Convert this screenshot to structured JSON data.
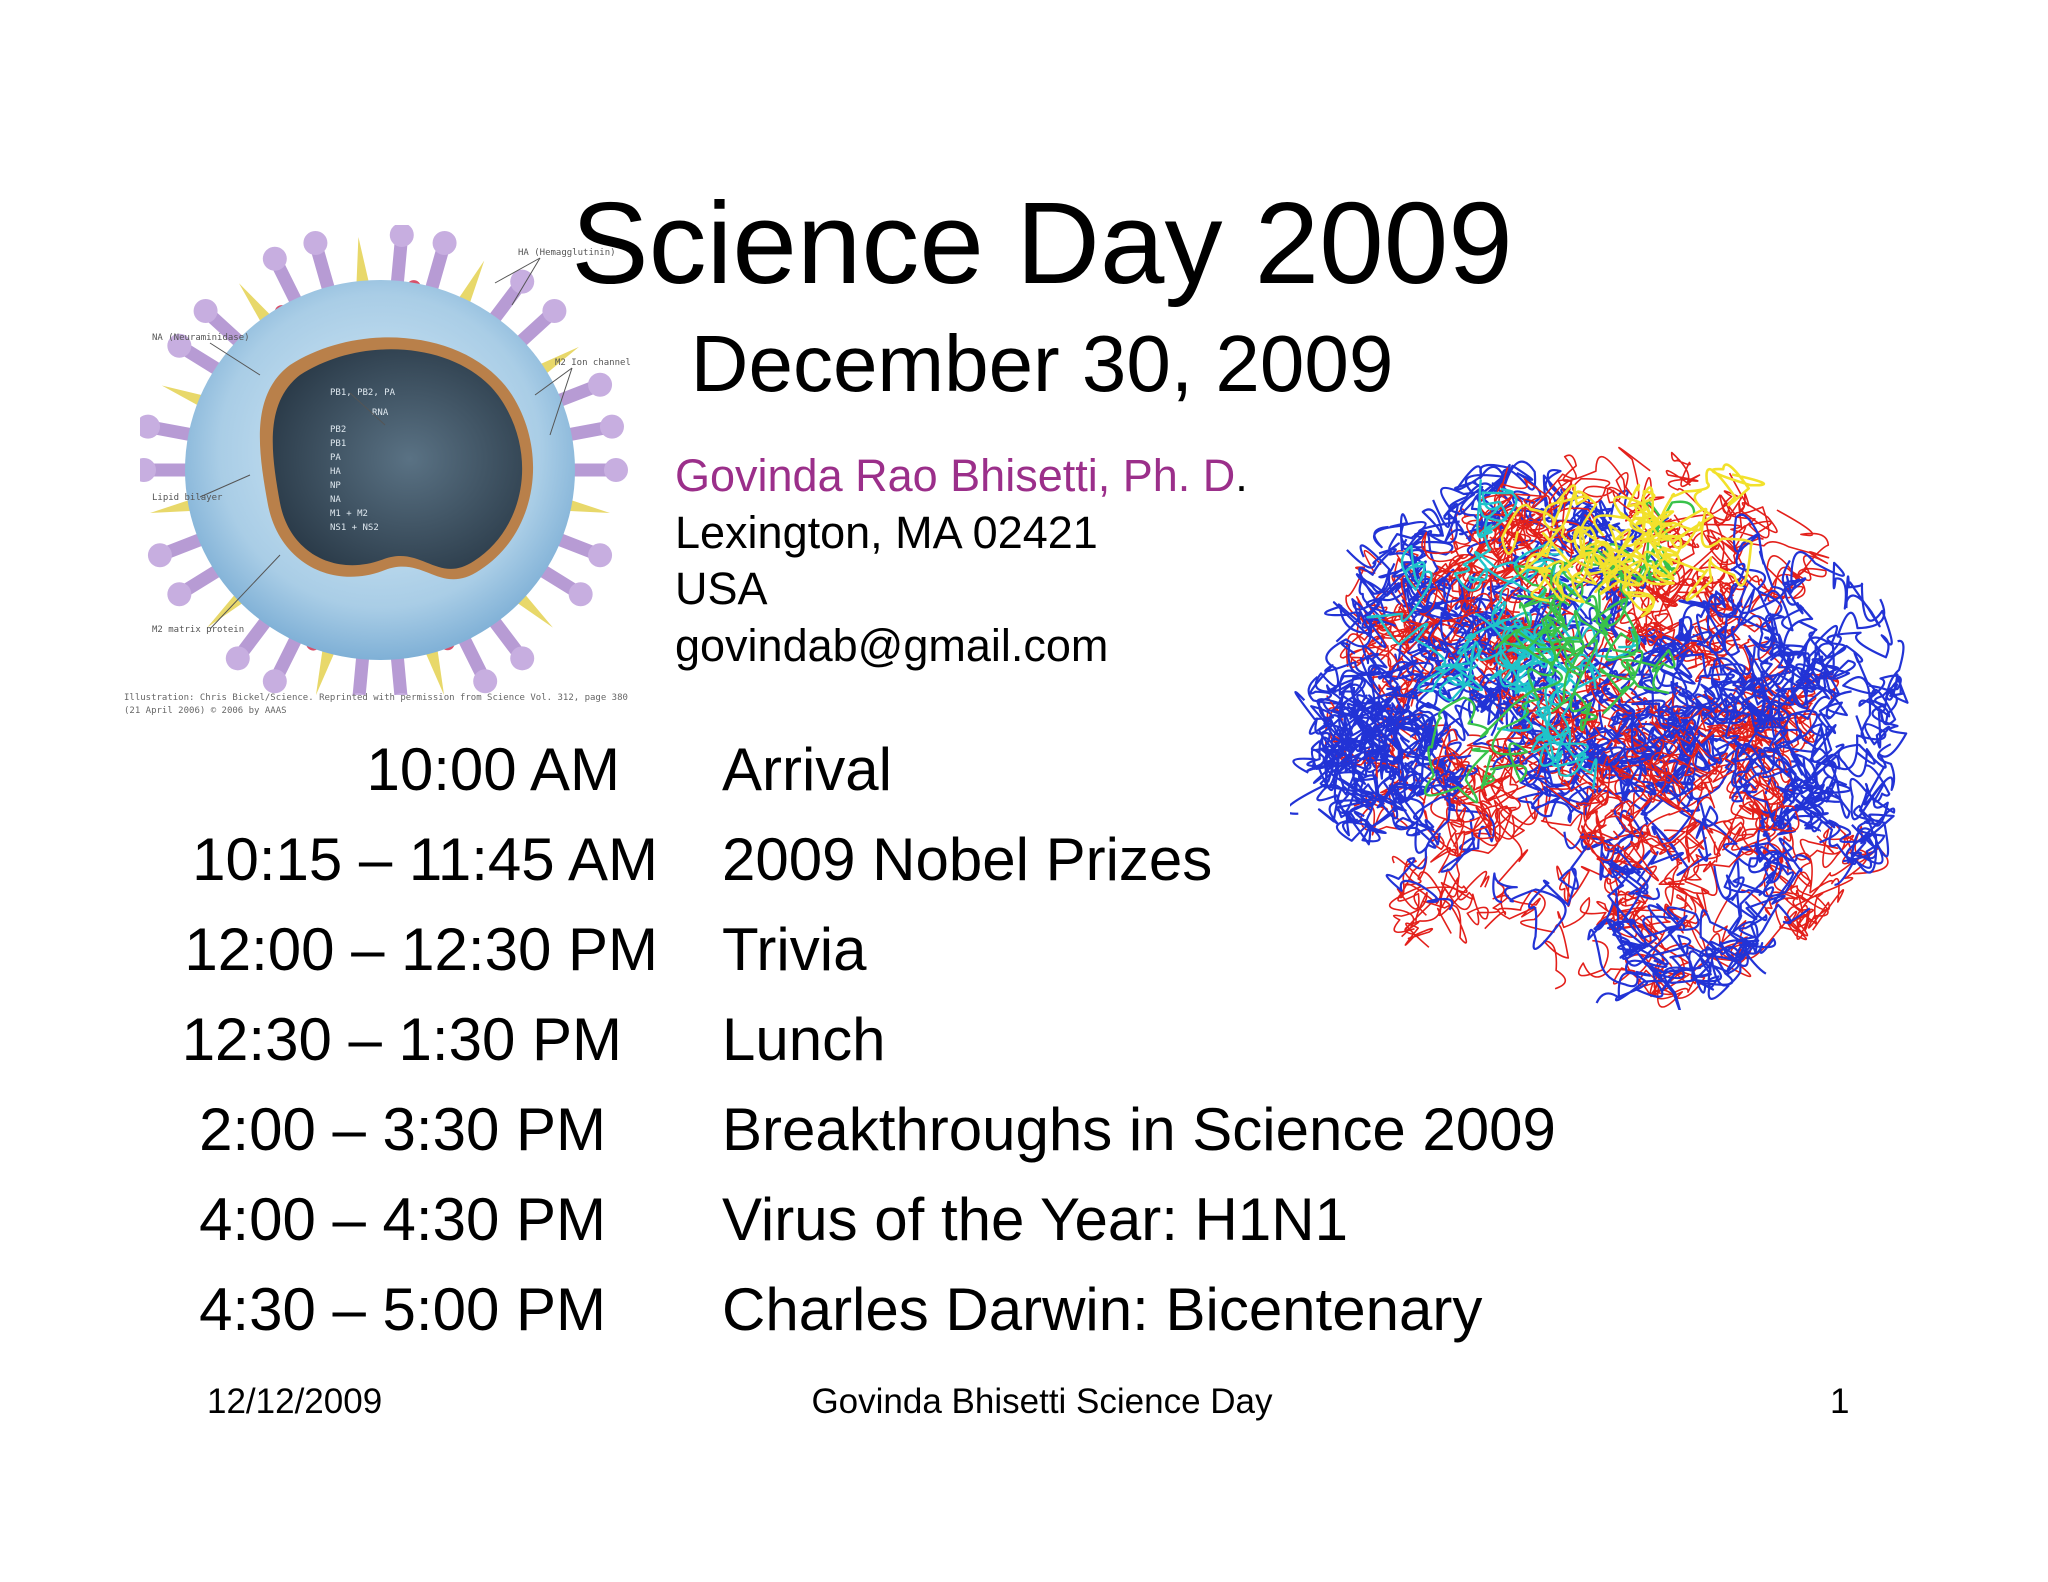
{
  "slide": {
    "title": "Science Day 2009",
    "subtitle": "December 30, 2009",
    "contact": {
      "name": "Govinda Rao Bhisetti, Ph. D",
      "name_period": ".",
      "address": "Lexington, MA 02421",
      "country": "USA",
      "email": "govindab@gmail.com"
    },
    "schedule": [
      {
        "time": "10:00 AM",
        "event": "Arrival"
      },
      {
        "time": "10:15 – 11:45 AM",
        "event": "2009 Nobel Prizes"
      },
      {
        "time": "12:00 – 12:30 PM",
        "event": "Trivia"
      },
      {
        "time": "12:30 – 1:30 PM",
        "event": "Lunch"
      },
      {
        "time": "2:00 – 3:30 PM",
        "event": "Breakthroughs in Science 2009"
      },
      {
        "time": "4:00 – 4:30 PM",
        "event": "Virus of the Year: H1N1"
      },
      {
        "time": "4:30 – 5:00 PM",
        "event": "Charles Darwin: Bicentenary"
      }
    ],
    "footer": {
      "date": "12/12/2009",
      "center": "Govinda Bhisetti Science Day",
      "page": "1"
    }
  },
  "virus_figure": {
    "icon": "influenza-virus-diagram",
    "labels": {
      "ha": "HA (Hemagglutinin)",
      "na": "NA (Neuraminidase)",
      "m2_ion": "M2 Ion channel",
      "lipid": "Lipid bilayer",
      "m2_matrix": "M2 matrix protein",
      "polymerase": "PB1, PB2, PA",
      "rna": "RNA"
    },
    "segments": [
      "PB2",
      "PB1",
      "PA",
      "HA",
      "NP",
      "NA",
      "M1 + M2",
      "NS1 + NS2"
    ],
    "credit": "Illustration: Chris Bickel/Science. Reprinted with permission from Science Vol. 312, page 380 (21 April 2006) © 2006 by AAAS",
    "colors": {
      "membrane": "#a9cde6",
      "core": "#3e5567",
      "spike_ha": "#b79bd4",
      "spike_na": "#e8d86a",
      "m2": "#d9506a"
    }
  },
  "ribosome_figure": {
    "icon": "ribosome-structure-ribbon",
    "colors": {
      "red": "#e3201b",
      "blue": "#2233d6",
      "yellow": "#f2e12b",
      "cyan": "#1fc4c9",
      "green": "#38c24a"
    }
  }
}
